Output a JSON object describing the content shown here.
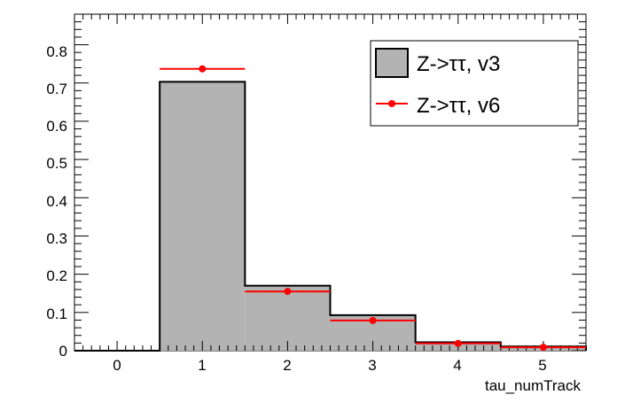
{
  "chart_data": {
    "type": "bar",
    "xlabel": "tau_numTrack",
    "ylabel": "",
    "title": "",
    "xlim": [
      -0.5,
      5.5
    ],
    "ylim": [
      0,
      0.88
    ],
    "xticks": [
      "0",
      "1",
      "2",
      "3",
      "4",
      "5"
    ],
    "yticks": [
      "0",
      "0.1",
      "0.2",
      "0.3",
      "0.4",
      "0.5",
      "0.6",
      "0.7",
      "0.8"
    ],
    "categories": [
      0,
      1,
      2,
      3,
      4,
      5
    ],
    "series": [
      {
        "name": "Z->ττ, v3",
        "style": "filled-histogram",
        "color": "#b3b3b3",
        "values": [
          0.0,
          0.703,
          0.17,
          0.093,
          0.022,
          0.011
        ]
      },
      {
        "name": "Z->ττ, v6",
        "style": "markers-with-xerror",
        "color": "#ff0000",
        "values": [
          0.0,
          0.737,
          0.155,
          0.079,
          0.019,
          0.009
        ]
      }
    ],
    "legend_position": "top-right",
    "grid": false
  }
}
